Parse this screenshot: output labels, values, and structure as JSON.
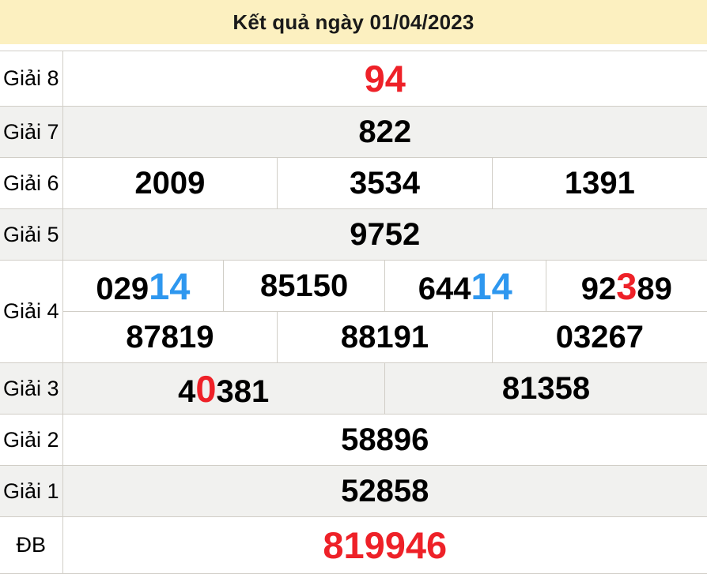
{
  "header": {
    "title": "Kết quả ngày 01/04/2023"
  },
  "colors": {
    "header_bg": "#fcf0c0",
    "row_alt_bg": "#f1f1ef",
    "border": "#d1cec7",
    "red": "#ee2128",
    "blue": "#2e97ef"
  },
  "table": {
    "rows": [
      {
        "label": "Giải 8",
        "zebra": "white",
        "sub_rows": [
          [
            [
              {
                "text": "94",
                "color": "red",
                "highlight": true
              }
            ]
          ]
        ]
      },
      {
        "label": "Giải 7",
        "zebra": "gray",
        "sub_rows": [
          [
            [
              {
                "text": "822"
              }
            ]
          ]
        ]
      },
      {
        "label": "Giải 6",
        "zebra": "white",
        "sub_rows": [
          [
            [
              {
                "text": "2009"
              }
            ],
            [
              {
                "text": "3534"
              }
            ],
            [
              {
                "text": "1391"
              }
            ]
          ]
        ]
      },
      {
        "label": "Giải 5",
        "zebra": "gray",
        "sub_rows": [
          [
            [
              {
                "text": "9752"
              }
            ]
          ]
        ]
      },
      {
        "label": "Giải 4",
        "zebra": "white",
        "sub_rows": [
          [
            [
              {
                "text": "029"
              },
              {
                "text": "14",
                "color": "blue",
                "highlight": true
              }
            ],
            [
              {
                "text": "85150"
              }
            ],
            [
              {
                "text": "644"
              },
              {
                "text": "14",
                "color": "blue",
                "highlight": true
              }
            ],
            [
              {
                "text": "92"
              },
              {
                "text": "3",
                "color": "red",
                "highlight": true
              },
              {
                "text": "89"
              }
            ]
          ],
          [
            [
              {
                "text": "87819"
              }
            ],
            [
              {
                "text": "88191"
              }
            ],
            [
              {
                "text": "03267"
              }
            ]
          ]
        ]
      },
      {
        "label": "Giải 3",
        "zebra": "gray",
        "sub_rows": [
          [
            [
              {
                "text": "4"
              },
              {
                "text": "0",
                "color": "red",
                "highlight": true
              },
              {
                "text": "381"
              }
            ],
            [
              {
                "text": "81358"
              }
            ]
          ]
        ]
      },
      {
        "label": "Giải 2",
        "zebra": "white",
        "sub_rows": [
          [
            [
              {
                "text": "58896"
              }
            ]
          ]
        ]
      },
      {
        "label": "Giải 1",
        "zebra": "gray",
        "sub_rows": [
          [
            [
              {
                "text": "52858"
              }
            ]
          ]
        ]
      },
      {
        "label": "ĐB",
        "zebra": "white",
        "sub_rows": [
          [
            [
              {
                "text": "819946",
                "color": "red",
                "highlight": true
              }
            ]
          ]
        ]
      }
    ]
  }
}
